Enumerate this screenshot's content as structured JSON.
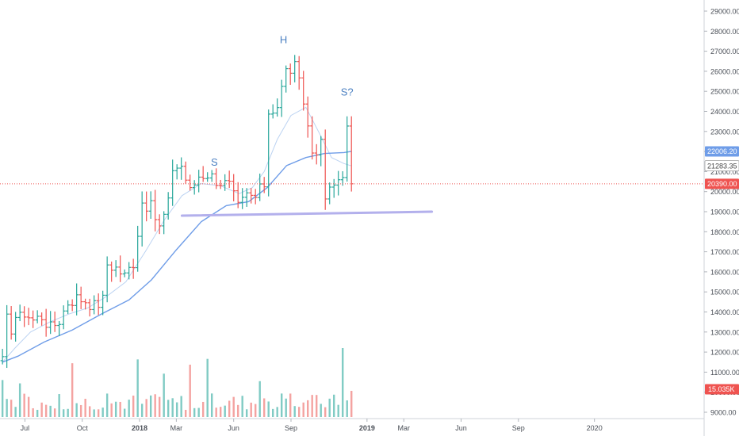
{
  "chart_data": {
    "type": "ohlc",
    "annotations": [
      {
        "text": "S",
        "date": "2018-05-01",
        "price": 21300
      },
      {
        "text": "H",
        "date": "2018-08-20",
        "price": 27400
      },
      {
        "text": "S?",
        "date": "2018-11-30",
        "price": 24800
      }
    ],
    "neckline": {
      "start": {
        "date": "2018-03-10",
        "price": 18800
      },
      "end": {
        "date": "2019-04-15",
        "price": 19000
      }
    },
    "price_levels": [
      {
        "value": 22006.2,
        "label": "22006.20",
        "color": "#6f9de8",
        "text_color": "#ffffff"
      },
      {
        "value": 21283.35,
        "label": "21283.35",
        "color": "#ffffff",
        "text_color": "#444444",
        "border": "#888888"
      },
      {
        "value": 20390.0,
        "label": "20390.00",
        "color": "#ef5350",
        "text_color": "#ffffff"
      }
    ],
    "volume_label": {
      "label": "15.035K",
      "color": "#ef5350"
    },
    "y_axis": {
      "range": [
        9000,
        29000
      ],
      "ticks": [
        "9000.00",
        "10000.00",
        "11000.00",
        "12000.00",
        "13000.00",
        "14000.00",
        "15000.00",
        "16000.00",
        "17000.00",
        "18000.00",
        "19000.00",
        "20000.00",
        "21000.00",
        "22000.00",
        "23000.00",
        "24000.00",
        "25000.00",
        "26000.00",
        "27000.00",
        "28000.00",
        "29000.00"
      ]
    },
    "x_axis": {
      "range": [
        "2017-05-22",
        "2020-06-25"
      ],
      "ticks": [
        {
          "date": "2017-07-01",
          "label": "Jul",
          "bold": false
        },
        {
          "date": "2017-10-01",
          "label": "Oct",
          "bold": false
        },
        {
          "date": "2018-01-01",
          "label": "2018",
          "bold": true
        },
        {
          "date": "2018-03-01",
          "label": "Mar",
          "bold": false
        },
        {
          "date": "2018-06-01",
          "label": "Jun",
          "bold": false
        },
        {
          "date": "2018-09-01",
          "label": "Sep",
          "bold": false
        },
        {
          "date": "2019-01-01",
          "label": "2019",
          "bold": true
        },
        {
          "date": "2019-03-01",
          "label": "Mar",
          "bold": false
        },
        {
          "date": "2019-06-01",
          "label": "Jun",
          "bold": false
        },
        {
          "date": "2019-09-01",
          "label": "Sep",
          "bold": false
        },
        {
          "date": "2020-01-01",
          "label": "2020",
          "bold": false
        }
      ]
    },
    "colors": {
      "up": "#26a69a",
      "down": "#ef5350",
      "up_volume": "#80cbc4",
      "down_volume": "#f4a3a1",
      "ma_fast": "#bcd3f2",
      "ma_slow": "#6f9de8",
      "neckline": "#b3b0ec",
      "annotation": "#4a7fc1"
    },
    "moving_averages": [
      {
        "period": "fast",
        "points": [
          {
            "date": "2017-05-26",
            "price": 11500
          },
          {
            "date": "2017-06-15",
            "price": 12200
          },
          {
            "date": "2017-07-10",
            "price": 13000
          },
          {
            "date": "2017-08-10",
            "price": 13500
          },
          {
            "date": "2017-09-10",
            "price": 13900
          },
          {
            "date": "2017-10-10",
            "price": 14200
          },
          {
            "date": "2017-11-10",
            "price": 14800
          },
          {
            "date": "2017-12-10",
            "price": 15500
          },
          {
            "date": "2018-01-10",
            "price": 17000
          },
          {
            "date": "2018-02-10",
            "price": 18600
          },
          {
            "date": "2018-03-10",
            "price": 19800
          },
          {
            "date": "2018-04-10",
            "price": 20400
          },
          {
            "date": "2018-05-10",
            "price": 20300
          },
          {
            "date": "2018-06-10",
            "price": 19900
          },
          {
            "date": "2018-07-01",
            "price": 20200
          },
          {
            "date": "2018-07-20",
            "price": 21000
          },
          {
            "date": "2018-08-10",
            "price": 22600
          },
          {
            "date": "2018-09-01",
            "price": 23800
          },
          {
            "date": "2018-09-25",
            "price": 24200
          },
          {
            "date": "2018-10-15",
            "price": 23000
          },
          {
            "date": "2018-11-05",
            "price": 21700
          },
          {
            "date": "2018-11-25",
            "price": 21400
          },
          {
            "date": "2018-12-07",
            "price": 21283
          }
        ]
      },
      {
        "period": "slow",
        "points": [
          {
            "date": "2017-05-26",
            "price": 11500
          },
          {
            "date": "2017-06-20",
            "price": 11800
          },
          {
            "date": "2017-08-01",
            "price": 12500
          },
          {
            "date": "2017-09-15",
            "price": 13100
          },
          {
            "date": "2017-11-01",
            "price": 13900
          },
          {
            "date": "2017-12-15",
            "price": 14600
          },
          {
            "date": "2018-01-20",
            "price": 15600
          },
          {
            "date": "2018-03-01",
            "price": 17100
          },
          {
            "date": "2018-04-10",
            "price": 18500
          },
          {
            "date": "2018-05-20",
            "price": 19300
          },
          {
            "date": "2018-06-25",
            "price": 19500
          },
          {
            "date": "2018-07-25",
            "price": 20200
          },
          {
            "date": "2018-08-25",
            "price": 21300
          },
          {
            "date": "2018-09-25",
            "price": 21700
          },
          {
            "date": "2018-10-25",
            "price": 21900
          },
          {
            "date": "2018-11-25",
            "price": 21950
          },
          {
            "date": "2018-12-07",
            "price": 22006
          }
        ]
      }
    ],
    "ohlc_anchors": [
      {
        "date": "2017-05-26",
        "price": 11500
      },
      {
        "date": "2017-06-02",
        "price": 13600
      },
      {
        "date": "2017-06-09",
        "price": 13200
      },
      {
        "date": "2017-06-16",
        "price": 13800
      },
      {
        "date": "2017-06-23",
        "price": 13700
      },
      {
        "date": "2017-06-30",
        "price": 14000
      },
      {
        "date": "2017-07-14",
        "price": 13600
      },
      {
        "date": "2017-07-28",
        "price": 13800
      },
      {
        "date": "2017-08-11",
        "price": 13200
      },
      {
        "date": "2017-08-25",
        "price": 13600
      },
      {
        "date": "2017-09-08",
        "price": 14500
      },
      {
        "date": "2017-09-22",
        "price": 14700
      },
      {
        "date": "2017-10-06",
        "price": 14600
      },
      {
        "date": "2017-10-20",
        "price": 14300
      },
      {
        "date": "2017-11-03",
        "price": 14600
      },
      {
        "date": "2017-11-10",
        "price": 16400
      },
      {
        "date": "2017-11-24",
        "price": 16200
      },
      {
        "date": "2017-12-08",
        "price": 15800
      },
      {
        "date": "2017-12-22",
        "price": 16500
      },
      {
        "date": "2018-01-05",
        "price": 19500
      },
      {
        "date": "2018-01-19",
        "price": 19200
      },
      {
        "date": "2018-02-02",
        "price": 18200
      },
      {
        "date": "2018-02-16",
        "price": 19400
      },
      {
        "date": "2018-02-23",
        "price": 21200
      },
      {
        "date": "2018-03-09",
        "price": 21300
      },
      {
        "date": "2018-03-23",
        "price": 20000
      },
      {
        "date": "2018-04-06",
        "price": 20800
      },
      {
        "date": "2018-04-20",
        "price": 20900
      },
      {
        "date": "2018-05-04",
        "price": 20600
      },
      {
        "date": "2018-05-25",
        "price": 20300
      },
      {
        "date": "2018-06-08",
        "price": 19200
      },
      {
        "date": "2018-06-22",
        "price": 19800
      },
      {
        "date": "2018-07-06",
        "price": 19700
      },
      {
        "date": "2018-07-20",
        "price": 20400
      },
      {
        "date": "2018-07-27",
        "price": 24000
      },
      {
        "date": "2018-08-10",
        "price": 24300
      },
      {
        "date": "2018-08-24",
        "price": 26000
      },
      {
        "date": "2018-09-07",
        "price": 26200
      },
      {
        "date": "2018-09-21",
        "price": 24500
      },
      {
        "date": "2018-10-05",
        "price": 22000
      },
      {
        "date": "2018-10-19",
        "price": 22300
      },
      {
        "date": "2018-10-26",
        "price": 19700
      },
      {
        "date": "2018-11-09",
        "price": 20300
      },
      {
        "date": "2018-11-23",
        "price": 21000
      },
      {
        "date": "2018-11-30",
        "price": 23100
      },
      {
        "date": "2018-12-07",
        "price": 20390
      }
    ],
    "volume_range": [
      0,
      100000
    ]
  }
}
